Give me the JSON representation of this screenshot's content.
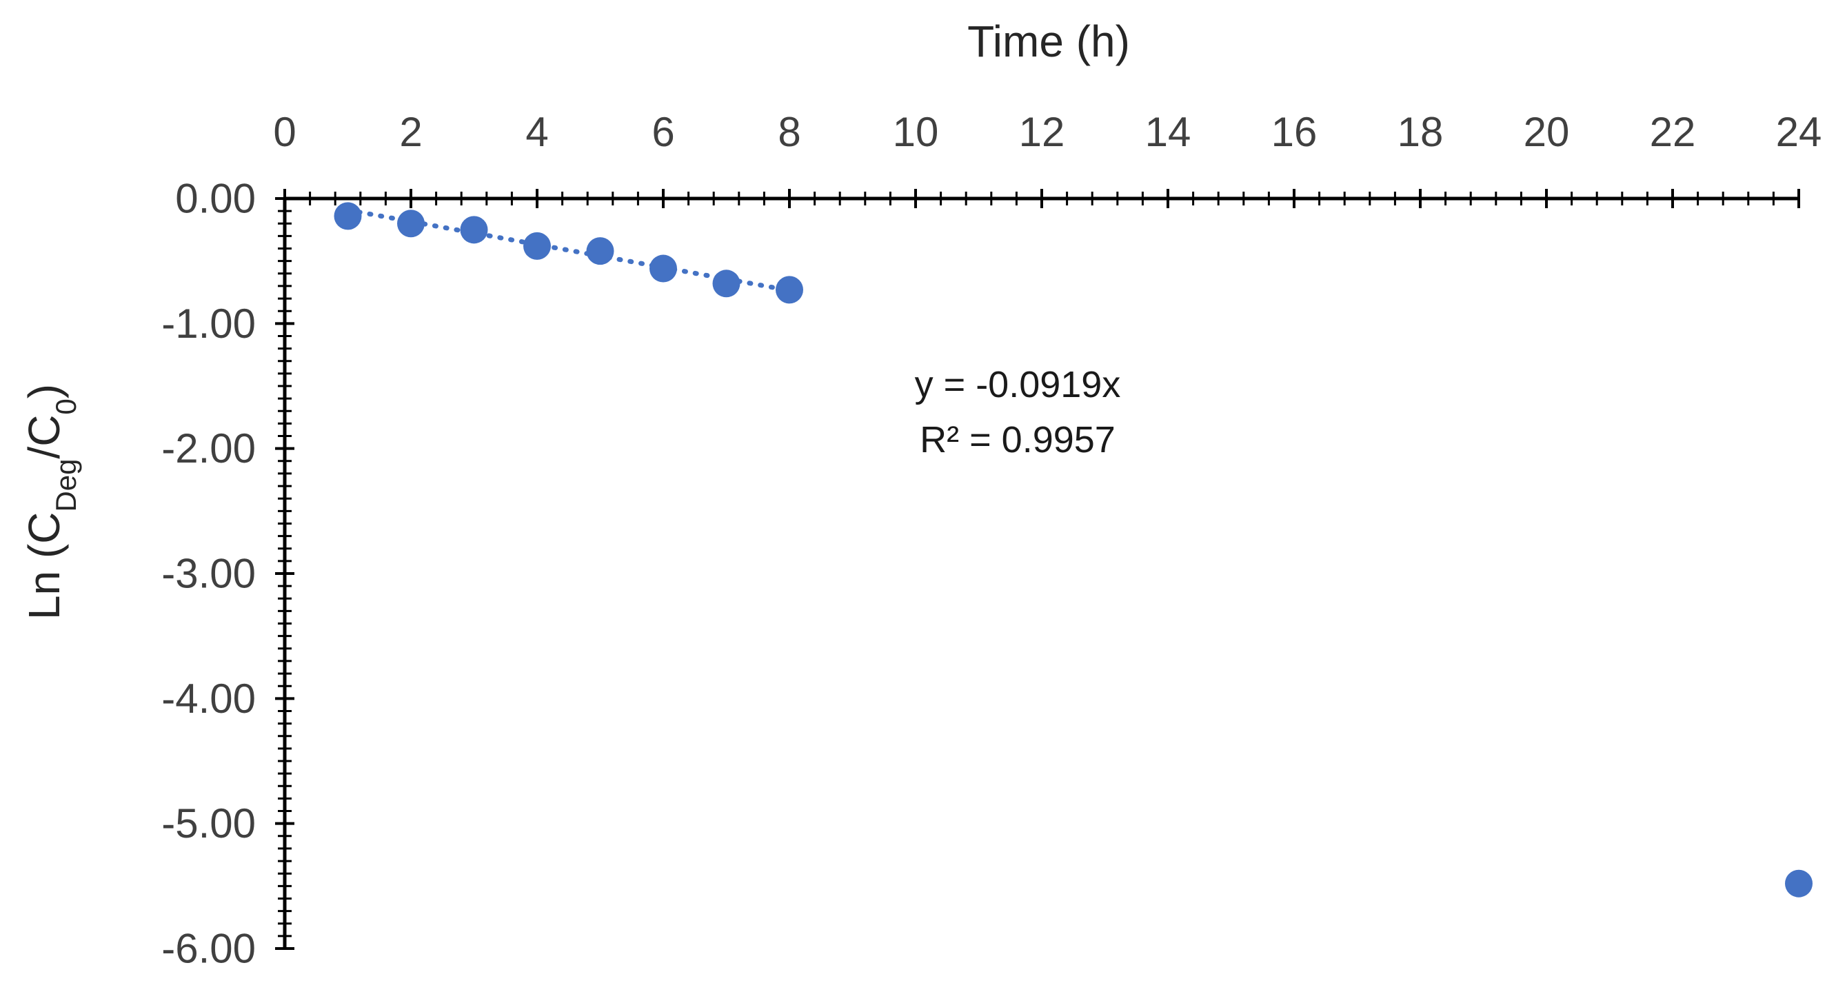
{
  "chart_data": {
    "type": "scatter",
    "title": "",
    "xlabel": "Time (h)",
    "ylabel": {
      "prefix": "Ln (C",
      "sub1": "Deg",
      "middle": "/C",
      "sub2": "0",
      "suffix": ")"
    },
    "x_axis_position": "top",
    "xlim": [
      0,
      24
    ],
    "ylim": [
      -6,
      0
    ],
    "x_ticks": [
      "0",
      "2",
      "4",
      "6",
      "8",
      "10",
      "12",
      "14",
      "16",
      "18",
      "20",
      "22",
      "24"
    ],
    "y_ticks": [
      "0.00",
      "-1.00",
      "-2.00",
      "-3.00",
      "-4.00",
      "-5.00",
      "-6.00"
    ],
    "grid": false,
    "legend": "none",
    "series": [
      {
        "x": [
          1,
          2,
          3,
          4,
          5,
          6,
          7,
          8,
          24
        ],
        "y": [
          -0.14,
          -0.2,
          -0.25,
          -0.38,
          -0.42,
          -0.56,
          -0.68,
          -0.73,
          -5.48
        ],
        "color": "#4472c4"
      }
    ],
    "trendline": {
      "type": "linear",
      "slope": -0.0919,
      "intercept": 0,
      "x_range": [
        1,
        8
      ],
      "style": "dotted",
      "color": "#4472c4",
      "equation": "y = -0.0919x",
      "r_squared": "R² = 0.9957"
    }
  }
}
